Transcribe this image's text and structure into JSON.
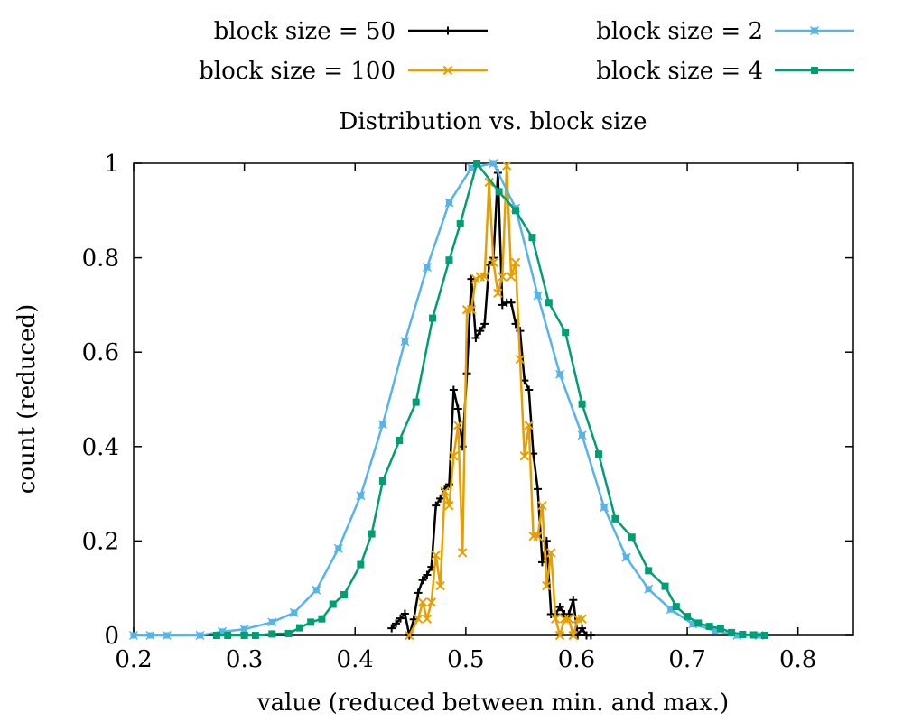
{
  "chart_data": {
    "type": "line",
    "title": "Distribution vs. block size",
    "xlabel": "value (reduced between min. and max.)",
    "ylabel": "count (reduced)",
    "xlim": [
      0.2,
      0.85
    ],
    "ylim": [
      0,
      1
    ],
    "grid": false,
    "legend_placement": "top, outside plot, two columns",
    "x_ticks": [
      {
        "value": 0.2,
        "label": "0.2"
      },
      {
        "value": 0.3,
        "label": "0.3"
      },
      {
        "value": 0.4,
        "label": "0.4"
      },
      {
        "value": 0.5,
        "label": "0.5"
      },
      {
        "value": 0.6,
        "label": "0.6"
      },
      {
        "value": 0.7,
        "label": "0.7"
      },
      {
        "value": 0.8,
        "label": "0.8"
      }
    ],
    "y_ticks": [
      {
        "value": 0,
        "label": "0"
      },
      {
        "value": 0.2,
        "label": "0.2"
      },
      {
        "value": 0.4,
        "label": "0.4"
      },
      {
        "value": 0.6,
        "label": "0.6"
      },
      {
        "value": 0.8,
        "label": "0.8"
      },
      {
        "value": 1,
        "label": "1"
      }
    ],
    "series": [
      {
        "name": "block size = 50",
        "color": "#000000",
        "marker": "plus",
        "legend_column": "left",
        "points": [
          [
            0.433,
            0.015
          ],
          [
            0.437,
            0.025
          ],
          [
            0.441,
            0.036
          ],
          [
            0.445,
            0.046
          ],
          [
            0.449,
            0.0
          ],
          [
            0.453,
            0.034
          ],
          [
            0.457,
            0.09
          ],
          [
            0.461,
            0.117
          ],
          [
            0.465,
            0.128
          ],
          [
            0.469,
            0.145
          ],
          [
            0.473,
            0.275
          ],
          [
            0.477,
            0.29
          ],
          [
            0.481,
            0.31
          ],
          [
            0.485,
            0.32
          ],
          [
            0.489,
            0.52
          ],
          [
            0.493,
            0.48
          ],
          [
            0.497,
            0.4
          ],
          [
            0.501,
            0.555
          ],
          [
            0.505,
            0.755
          ],
          [
            0.509,
            0.63
          ],
          [
            0.513,
            0.645
          ],
          [
            0.517,
            0.66
          ],
          [
            0.521,
            0.785
          ],
          [
            0.525,
            0.8
          ],
          [
            0.529,
            0.98
          ],
          [
            0.533,
            0.7
          ],
          [
            0.537,
            0.705
          ],
          [
            0.541,
            0.705
          ],
          [
            0.545,
            0.66
          ],
          [
            0.549,
            0.645
          ],
          [
            0.553,
            0.54
          ],
          [
            0.557,
            0.52
          ],
          [
            0.561,
            0.385
          ],
          [
            0.565,
            0.31
          ],
          [
            0.569,
            0.155
          ],
          [
            0.573,
            0.2
          ],
          [
            0.577,
            0.045
          ],
          [
            0.581,
            0.045
          ],
          [
            0.585,
            0.06
          ],
          [
            0.589,
            0.045
          ],
          [
            0.593,
            0.045
          ],
          [
            0.597,
            0.075
          ],
          [
            0.601,
            0.0
          ],
          [
            0.605,
            0.015
          ],
          [
            0.609,
            0.0
          ],
          [
            0.613,
            0.0
          ]
        ]
      },
      {
        "name": "block size = 100",
        "color": "#E69F00",
        "marker": "x",
        "legend_column": "left",
        "points": [
          [
            0.449,
            0.0
          ],
          [
            0.457,
            0.035
          ],
          [
            0.461,
            0.07
          ],
          [
            0.465,
            0.035
          ],
          [
            0.469,
            0.07
          ],
          [
            0.473,
            0.17
          ],
          [
            0.477,
            0.105
          ],
          [
            0.481,
            0.305
          ],
          [
            0.485,
            0.275
          ],
          [
            0.489,
            0.38
          ],
          [
            0.493,
            0.445
          ],
          [
            0.497,
            0.175
          ],
          [
            0.501,
            0.69
          ],
          [
            0.505,
            0.69
          ],
          [
            0.509,
            0.755
          ],
          [
            0.513,
            0.76
          ],
          [
            0.517,
            0.76
          ],
          [
            0.521,
            0.96
          ],
          [
            0.525,
            0.79
          ],
          [
            0.529,
            0.725
          ],
          [
            0.533,
            0.76
          ],
          [
            0.537,
            0.995
          ],
          [
            0.541,
            0.76
          ],
          [
            0.545,
            0.79
          ],
          [
            0.549,
            0.585
          ],
          [
            0.553,
            0.38
          ],
          [
            0.557,
            0.445
          ],
          [
            0.561,
            0.21
          ],
          [
            0.565,
            0.21
          ],
          [
            0.569,
            0.275
          ],
          [
            0.573,
            0.105
          ],
          [
            0.577,
            0.175
          ],
          [
            0.581,
            0.035
          ],
          [
            0.585,
            0.0
          ],
          [
            0.589,
            0.035
          ],
          [
            0.593,
            0.035
          ],
          [
            0.597,
            0.0
          ],
          [
            0.601,
            0.035
          ],
          [
            0.605,
            0.035
          ]
        ]
      },
      {
        "name": "block size = 2",
        "color": "#56B4E9",
        "marker": "filled-square-x",
        "legend_column": "right",
        "points": [
          [
            0.2,
            0.0
          ],
          [
            0.215,
            0.0
          ],
          [
            0.23,
            0.0
          ],
          [
            0.26,
            0.0
          ],
          [
            0.28,
            0.008
          ],
          [
            0.3,
            0.013
          ],
          [
            0.325,
            0.028
          ],
          [
            0.345,
            0.048
          ],
          [
            0.365,
            0.096
          ],
          [
            0.385,
            0.184
          ],
          [
            0.405,
            0.296
          ],
          [
            0.425,
            0.447
          ],
          [
            0.445,
            0.623
          ],
          [
            0.465,
            0.78
          ],
          [
            0.485,
            0.917
          ],
          [
            0.505,
            0.99
          ],
          [
            0.525,
            1.0
          ],
          [
            0.545,
            0.905
          ],
          [
            0.565,
            0.72
          ],
          [
            0.585,
            0.553
          ],
          [
            0.605,
            0.424
          ],
          [
            0.625,
            0.271
          ],
          [
            0.645,
            0.165
          ],
          [
            0.665,
            0.098
          ],
          [
            0.685,
            0.055
          ],
          [
            0.705,
            0.024
          ],
          [
            0.725,
            0.01
          ],
          [
            0.745,
            0.0
          ],
          [
            0.765,
            0.0
          ]
        ]
      },
      {
        "name": "block size = 4",
        "color": "#009E73",
        "marker": "filled-square",
        "legend_column": "right",
        "points": [
          [
            0.275,
            0.0
          ],
          [
            0.285,
            0.0
          ],
          [
            0.3,
            0.0
          ],
          [
            0.31,
            0.0
          ],
          [
            0.325,
            0.003
          ],
          [
            0.34,
            0.004
          ],
          [
            0.35,
            0.016
          ],
          [
            0.36,
            0.028
          ],
          [
            0.37,
            0.035
          ],
          [
            0.38,
            0.066
          ],
          [
            0.39,
            0.086
          ],
          [
            0.405,
            0.15
          ],
          [
            0.415,
            0.215
          ],
          [
            0.425,
            0.327
          ],
          [
            0.44,
            0.413
          ],
          [
            0.455,
            0.494
          ],
          [
            0.47,
            0.672
          ],
          [
            0.485,
            0.795
          ],
          [
            0.495,
            0.872
          ],
          [
            0.51,
            1.0
          ],
          [
            0.53,
            0.94
          ],
          [
            0.545,
            0.9
          ],
          [
            0.56,
            0.843
          ],
          [
            0.575,
            0.705
          ],
          [
            0.59,
            0.642
          ],
          [
            0.605,
            0.49
          ],
          [
            0.62,
            0.384
          ],
          [
            0.635,
            0.247
          ],
          [
            0.65,
            0.208
          ],
          [
            0.665,
            0.137
          ],
          [
            0.68,
            0.104
          ],
          [
            0.69,
            0.061
          ],
          [
            0.7,
            0.04
          ],
          [
            0.71,
            0.026
          ],
          [
            0.72,
            0.019
          ],
          [
            0.73,
            0.015
          ],
          [
            0.74,
            0.006
          ],
          [
            0.75,
            0.002
          ],
          [
            0.76,
            0.001
          ],
          [
            0.77,
            0.0
          ]
        ]
      }
    ]
  }
}
